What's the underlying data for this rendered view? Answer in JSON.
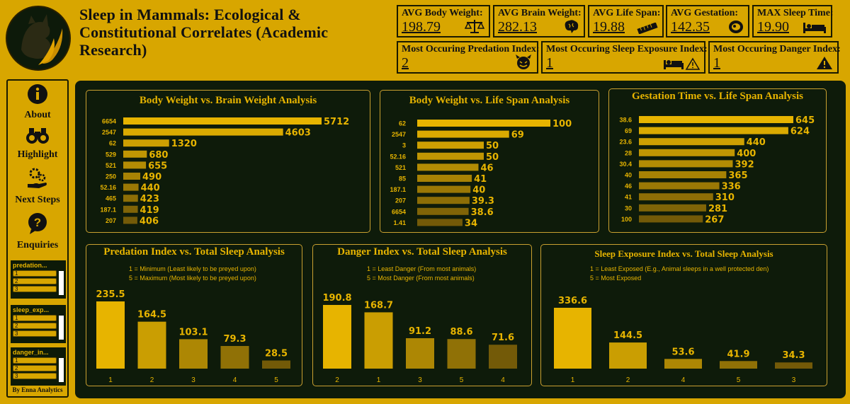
{
  "header": {
    "title": "Sleep in Mammals: Ecological & Constitutional Correlates (Academic Research)"
  },
  "kpis": [
    {
      "label": "AVG Body Weight:",
      "value": "198.79",
      "icon": "scale-icon"
    },
    {
      "label": "AVG Brain Weight:",
      "value": "282.13",
      "icon": "brain-icon"
    },
    {
      "label": "AVG Life Span:",
      "value": "19.88",
      "icon": "ruler-icon"
    },
    {
      "label": "AVG Gestation:",
      "value": "142.35",
      "icon": "gestation-icon"
    },
    {
      "label": "MAX Sleep Time:",
      "value": "19.90",
      "icon": "bed-icon"
    },
    {
      "label": "Most Occuring Predation Index:",
      "value": "2",
      "icon": "devil-icon"
    },
    {
      "label": "Most Occuring Sleep Exposure Index:",
      "value": "1",
      "icon": "bed-warning-icon"
    },
    {
      "label": "Most Occuring Danger Index:",
      "value": "1",
      "icon": "warning-icon"
    }
  ],
  "nav": [
    {
      "label": "About",
      "icon": "info-icon"
    },
    {
      "label": "Highlight",
      "icon": "binoculars-icon"
    },
    {
      "label": "Next Steps",
      "icon": "gears-hand-icon"
    },
    {
      "label": "Enquiries",
      "icon": "question-bubble-icon"
    }
  ],
  "slicers": [
    {
      "title": "predation...",
      "items": [
        "1",
        "2",
        "3"
      ]
    },
    {
      "title": "sleep_exp...",
      "items": [
        "1",
        "2",
        "3"
      ]
    },
    {
      "title": "danger_in...",
      "items": [
        "1",
        "2",
        "3"
      ]
    }
  ],
  "credit": "By Enna Analytics",
  "colors": {
    "accent": "#e7b400",
    "background": "#d8a600",
    "canvas": "#0e1b0a"
  },
  "chart_data": [
    {
      "type": "bar",
      "orientation": "horizontal",
      "title": "Body Weight vs. Brain Weight Analysis",
      "categories": [
        "6654",
        "2547",
        "62",
        "529",
        "521",
        "250",
        "52.16",
        "465",
        "187.1",
        "207"
      ],
      "values": [
        5712,
        4603,
        1320,
        680,
        655,
        490,
        440,
        423,
        419,
        406
      ],
      "xlim": [
        0,
        5712
      ]
    },
    {
      "type": "bar",
      "orientation": "horizontal",
      "title": "Body Weight vs. Life Span Analysis",
      "categories": [
        "62",
        "2547",
        "3",
        "52.16",
        "521",
        "85",
        "187.1",
        "207",
        "6654",
        "1.41"
      ],
      "values": [
        100,
        69,
        50,
        50,
        46,
        41,
        40,
        39.3,
        38.6,
        34
      ],
      "xlim": [
        0,
        100
      ]
    },
    {
      "type": "bar",
      "orientation": "horizontal",
      "title": "Gestation Time vs. Life Span Analysis",
      "categories": [
        "38.6",
        "69",
        "23.6",
        "28",
        "30.4",
        "40",
        "46",
        "41",
        "30",
        "100"
      ],
      "values": [
        645,
        624,
        440,
        400,
        392,
        365,
        336,
        310,
        281,
        267
      ],
      "xlim": [
        0,
        645
      ]
    },
    {
      "type": "bar",
      "orientation": "vertical",
      "title": "Predation Index vs. Total Sleep Analysis",
      "notes": [
        "1 = Minimum (Least likely to be preyed upon)",
        "5 = Maximum (Most likely to be preyed upon)"
      ],
      "categories": [
        "1",
        "2",
        "3",
        "4",
        "5"
      ],
      "values": [
        235.5,
        164.5,
        103.1,
        79.3,
        28.5
      ],
      "ylim": [
        0,
        235.5
      ]
    },
    {
      "type": "bar",
      "orientation": "vertical",
      "title": "Danger Index vs. Total Sleep Analysis",
      "notes": [
        "1 = Least Danger (From most animals)",
        "5 = Most Danger (From most animals)"
      ],
      "categories": [
        "2",
        "1",
        "3",
        "5",
        "4"
      ],
      "values": [
        190.8,
        168.7,
        91.2,
        88.6,
        71.6
      ],
      "ylim": [
        0,
        190.8
      ]
    },
    {
      "type": "bar",
      "orientation": "vertical",
      "title": "Sleep Exposure Index vs. Total Sleep Analysis",
      "notes": [
        "1 = Least Exposed (E.g., Animal sleeps in a well protected den)",
        "5 = Most Exposed"
      ],
      "categories": [
        "1",
        "2",
        "4",
        "5",
        "3"
      ],
      "values": [
        336.6,
        144.5,
        53.6,
        41.9,
        34.3
      ],
      "ylim": [
        0,
        336.6
      ]
    }
  ]
}
